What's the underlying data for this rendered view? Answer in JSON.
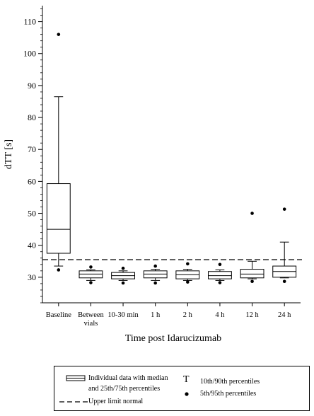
{
  "chart_data": {
    "type": "box",
    "ylabel": "dTT [s]",
    "xlabel": "Time post Idarucizumab",
    "ylim": [
      22,
      115
    ],
    "yticks": [
      30,
      40,
      50,
      60,
      70,
      80,
      90,
      100,
      110
    ],
    "y_minor_step": 2,
    "reference_line": {
      "value": 35.5,
      "style": "dashed"
    },
    "categories": [
      [
        "Baseline"
      ],
      [
        "Between",
        "vials"
      ],
      [
        "10-30 min"
      ],
      [
        "1 h"
      ],
      [
        "2 h"
      ],
      [
        "4 h"
      ],
      [
        "12 h"
      ],
      [
        "24 h"
      ]
    ],
    "boxes": [
      {
        "p10": 33.5,
        "q1": 37.5,
        "median": 45.0,
        "q3": 59.3,
        "p90": 86.5,
        "p5": 32.3,
        "p95": 106.0
      },
      {
        "p10": 29.0,
        "q1": 29.8,
        "median": 31.0,
        "q3": 32.0,
        "p90": 32.3,
        "p5": 28.3,
        "p95": 33.2
      },
      {
        "p10": 29.0,
        "q1": 29.5,
        "median": 30.5,
        "q3": 31.5,
        "p90": 32.0,
        "p5": 28.2,
        "p95": 32.8
      },
      {
        "p10": 29.0,
        "q1": 29.8,
        "median": 31.0,
        "q3": 32.0,
        "p90": 32.5,
        "p5": 28.2,
        "p95": 33.5
      },
      {
        "p10": 29.0,
        "q1": 29.5,
        "median": 30.8,
        "q3": 32.0,
        "p90": 32.5,
        "p5": 28.5,
        "p95": 34.2
      },
      {
        "p10": 29.0,
        "q1": 29.5,
        "median": 30.5,
        "q3": 31.8,
        "p90": 32.3,
        "p5": 28.3,
        "p95": 34.0
      },
      {
        "p10": 29.5,
        "q1": 29.8,
        "median": 31.0,
        "q3": 32.5,
        "p90": 35.0,
        "p5": 28.7,
        "p95": 50.0
      },
      {
        "p10": 29.8,
        "q1": 30.0,
        "median": 31.8,
        "q3": 33.5,
        "p90": 41.0,
        "p5": 28.7,
        "p95": 51.3
      }
    ]
  },
  "legend": {
    "box_label_line1": "Individual data with median",
    "box_label_line2": "and 25th/75th percentiles",
    "line_label": "Upper limit normal",
    "whisker_symbol": "T",
    "whisker_label": "10th/90th percentiles",
    "dot_label": "5th/95th percentiles"
  }
}
